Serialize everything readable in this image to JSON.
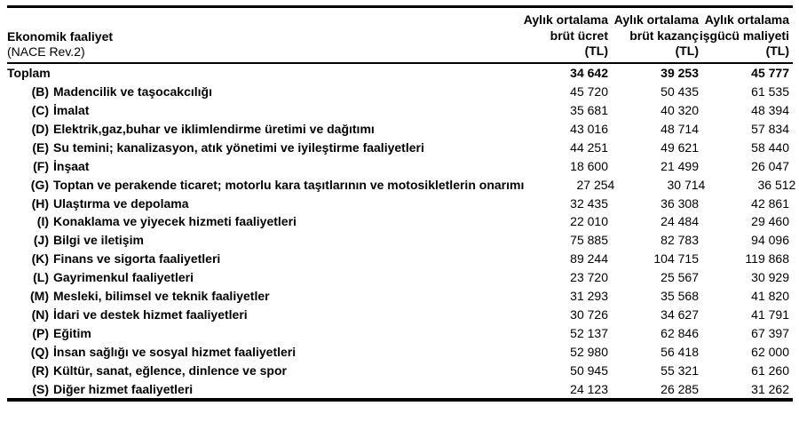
{
  "colors": {
    "background": "#ffffff",
    "text": "#000000",
    "rule": "#000000"
  },
  "table": {
    "header": {
      "label_col_line1": "Ekonomik faaliyet",
      "label_col_line2": "(NACE Rev.2)",
      "columns": [
        {
          "line1": "Aylık ortalama",
          "line2": "brüt ücret",
          "line3": "(TL)"
        },
        {
          "line1": "Aylık ortalama",
          "line2": "brüt kazanç",
          "line3": "(TL)"
        },
        {
          "line1": "Aylık ortalama",
          "line2": "işgücü maliyeti",
          "line3": "(TL)"
        }
      ]
    },
    "total_row": {
      "label": "Toplam",
      "values": [
        "34 642",
        "39 253",
        "45 777"
      ]
    },
    "rows": [
      {
        "code": "(B)",
        "label": "Madencilik ve taşocakcılığı",
        "values": [
          "45 720",
          "50 435",
          "61 535"
        ]
      },
      {
        "code": "(C)",
        "label": "İmalat",
        "values": [
          "35 681",
          "40 320",
          "48 394"
        ]
      },
      {
        "code": "(D)",
        "label": "Elektrik,gaz,buhar ve iklimlendirme üretimi ve dağıtımı",
        "values": [
          "43 016",
          "48 714",
          "57 834"
        ]
      },
      {
        "code": "(E)",
        "label": "Su temini; kanalizasyon, atık yönetimi ve iyileştirme faaliyetleri",
        "values": [
          "44 251",
          "49 621",
          "58 440"
        ]
      },
      {
        "code": "(F)",
        "label": "İnşaat",
        "values": [
          "18 600",
          "21 499",
          "26 047"
        ]
      },
      {
        "code": "(G)",
        "label": "Toptan ve perakende ticaret; motorlu kara taşıtlarının ve motosikletlerin onarımı",
        "values": [
          "27 254",
          "30 714",
          "36 512"
        ]
      },
      {
        "code": "(H)",
        "label": "Ulaştırma ve depolama",
        "values": [
          "32 435",
          "36 308",
          "42 861"
        ]
      },
      {
        "code": "(I)",
        "label": "Konaklama ve yiyecek hizmeti faaliyetleri",
        "values": [
          "22 010",
          "24 484",
          "29 460"
        ]
      },
      {
        "code": "(J)",
        "label": "Bilgi ve iletişim",
        "values": [
          "75 885",
          "82 783",
          "94 096"
        ]
      },
      {
        "code": "(K)",
        "label": "Finans ve sigorta faaliyetleri",
        "values": [
          "89 244",
          "104 715",
          "119 868"
        ]
      },
      {
        "code": "(L)",
        "label": "Gayrimenkul faaliyetleri",
        "values": [
          "23 720",
          "25 567",
          "30 929"
        ]
      },
      {
        "code": "(M)",
        "label": "Mesleki, bilimsel ve teknik faaliyetler",
        "values": [
          "31 293",
          "35 568",
          "41 820"
        ]
      },
      {
        "code": "(N)",
        "label": "İdari ve destek hizmet faaliyetleri",
        "values": [
          "30 726",
          "34 627",
          "41 791"
        ]
      },
      {
        "code": "(P)",
        "label": "Eğitim",
        "values": [
          "52 137",
          "62 846",
          "67 397"
        ]
      },
      {
        "code": "(Q)",
        "label": "İnsan sağlığı ve sosyal hizmet faaliyetleri",
        "values": [
          "52 980",
          "56 418",
          "62 000"
        ]
      },
      {
        "code": "(R)",
        "label": "Kültür, sanat, eğlence, dinlence ve spor",
        "values": [
          "50 945",
          "55 321",
          "61 260"
        ]
      },
      {
        "code": "(S)",
        "label": "Diğer hizmet faaliyetleri",
        "values": [
          "24 123",
          "26 285",
          "31 262"
        ]
      }
    ]
  }
}
